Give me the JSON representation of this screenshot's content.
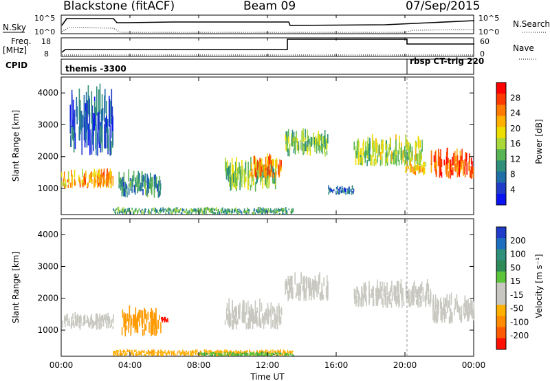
{
  "header": {
    "station": "Blackstone (fitACF)",
    "beam": "Beam 09",
    "date": "07/Sep/2015"
  },
  "panels": {
    "nsky": {
      "label": "N.Sky",
      "right_label": "N.Search",
      "ticks": [
        "10^5",
        "10^0"
      ],
      "right_ticks": [
        "10^5",
        "10^0"
      ]
    },
    "freq": {
      "label_line1": "Freq.",
      "label_line2": "[MHz]",
      "right_label": "Nave",
      "ticks": [
        "18",
        "8"
      ],
      "right_ticks": [
        "60",
        "0"
      ]
    },
    "cpid": {
      "label": "CPID",
      "program_1": "themis -3300",
      "program_2": "rbsp CT-trig 220"
    }
  },
  "colorbars": {
    "power": {
      "label": "Power [dB]",
      "ticks": [
        "28",
        "24",
        "20",
        "16",
        "12",
        "8",
        "4"
      ],
      "colors": [
        "#ff0000",
        "#ff3a00",
        "#ff7a00",
        "#ffb000",
        "#eedd00",
        "#a8d83a",
        "#59b455",
        "#2f8f7a",
        "#1f6ea8",
        "#1e3cc8",
        "#0a14f0"
      ]
    },
    "velocity": {
      "label": "Velocity [m s⁻¹]",
      "ticks": [
        "200",
        "100",
        "50",
        "15",
        "-15",
        "-50",
        "-100",
        "-200"
      ],
      "colors": [
        "#1e3cc8",
        "#1e6ec0",
        "#2f8f7a",
        "#2e8b57",
        "#5cc43a",
        "#c8c8c0",
        "#c8c8c0",
        "#ffb000",
        "#ff8c00",
        "#ff5a00",
        "#ff1000"
      ]
    }
  },
  "axes": {
    "ylabel": "Slant Range [km]",
    "xlabel": "Time UT",
    "yticks": [
      "4000",
      "3000",
      "2000",
      "1000"
    ],
    "xticks": [
      "00:00",
      "04:00",
      "08:00",
      "12:00",
      "16:00",
      "20:00",
      "00:00"
    ]
  },
  "chart_data": {
    "type": "heatmap",
    "x_range_hours": [
      0,
      24
    ],
    "y_range_km": [
      180,
      4500
    ],
    "cpid_change_hour": 20.0,
    "power_regions": [
      {
        "t0": 0.0,
        "t1": 3.0,
        "r0": 1000,
        "r1": 1650,
        "level": 22
      },
      {
        "t0": 3.3,
        "t1": 5.8,
        "r0": 700,
        "r1": 1600,
        "level": 10
      },
      {
        "t0": 0.5,
        "t1": 3.0,
        "r0": 2000,
        "r1": 4300,
        "level": 6
      },
      {
        "t0": 9.5,
        "t1": 12.5,
        "r0": 900,
        "r1": 2000,
        "level": 14
      },
      {
        "t0": 11.0,
        "t1": 12.8,
        "r0": 1300,
        "r1": 2100,
        "level": 24
      },
      {
        "t0": 13.0,
        "t1": 15.5,
        "r0": 2000,
        "r1": 2900,
        "level": 14
      },
      {
        "t0": 15.5,
        "t1": 17.0,
        "r0": 800,
        "r1": 1100,
        "level": 8
      },
      {
        "t0": 17.0,
        "t1": 21.0,
        "r0": 1700,
        "r1": 2700,
        "level": 16
      },
      {
        "t0": 20.0,
        "t1": 21.2,
        "r0": 1400,
        "r1": 1900,
        "level": 20
      },
      {
        "t0": 21.5,
        "t1": 24.0,
        "r0": 1300,
        "r1": 2300,
        "level": 26
      },
      {
        "t0": 3.0,
        "t1": 13.5,
        "r0": 180,
        "r1": 420,
        "level": 12
      }
    ],
    "velocity_regions": [
      {
        "t0": 0.0,
        "t1": 3.0,
        "r0": 1000,
        "r1": 1600,
        "vel": 0
      },
      {
        "t0": 3.5,
        "t1": 5.8,
        "r0": 800,
        "r1": 1800,
        "vel": -60
      },
      {
        "t0": 5.8,
        "t1": 6.2,
        "r0": 1200,
        "r1": 1450,
        "vel": -200
      },
      {
        "t0": 9.5,
        "t1": 12.8,
        "r0": 1000,
        "r1": 2000,
        "vel": 0
      },
      {
        "t0": 13.0,
        "t1": 15.5,
        "r0": 1900,
        "r1": 2900,
        "vel": 0
      },
      {
        "t0": 17.0,
        "t1": 21.5,
        "r0": 1700,
        "r1": 2600,
        "vel": 0
      },
      {
        "t0": 21.5,
        "t1": 24.0,
        "r0": 1200,
        "r1": 2200,
        "vel": 0
      },
      {
        "t0": 3.0,
        "t1": 13.5,
        "r0": 180,
        "r1": 400,
        "vel": -30
      },
      {
        "t0": 8.0,
        "t1": 13.5,
        "r0": 180,
        "r1": 330,
        "vel": 40
      }
    ]
  }
}
